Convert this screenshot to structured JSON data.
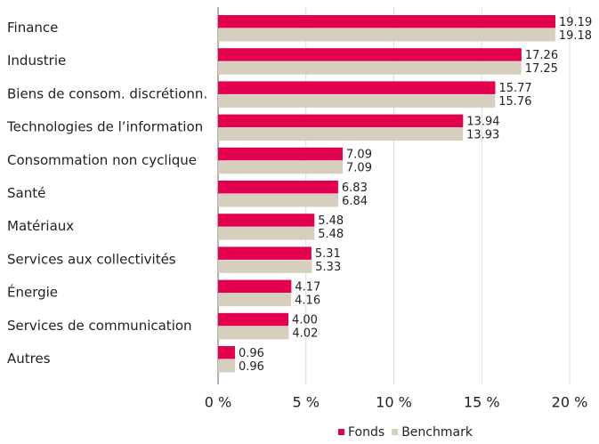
{
  "chart_data": {
    "type": "bar",
    "orientation": "horizontal",
    "categories": [
      "Finance",
      "Industrie",
      "Biens de consom. discrétionn.",
      "Technologies de l’information",
      "Consommation non cyclique",
      "Santé",
      "Matériaux",
      "Services aux collectivités",
      "Énergie",
      "Services de communication",
      "Autres"
    ],
    "series": [
      {
        "name": "Fonds",
        "color": "#e2004f",
        "values": [
          19.19,
          17.26,
          15.77,
          13.94,
          7.09,
          6.83,
          5.48,
          5.31,
          4.17,
          4.0,
          0.96
        ],
        "value_labels": [
          "19.19",
          "17.26",
          "15.77",
          "13.94",
          "7.09",
          "6.83",
          "5.48",
          "5.31",
          "4.17",
          "4.00",
          "0.96"
        ]
      },
      {
        "name": "Benchmark",
        "color": "#d6cfbd",
        "values": [
          19.18,
          17.25,
          15.76,
          13.93,
          7.09,
          6.84,
          5.48,
          5.33,
          4.16,
          4.02,
          0.96
        ],
        "value_labels": [
          "19.18",
          "17.25",
          "15.76",
          "13.93",
          "7.09",
          "6.84",
          "5.48",
          "5.33",
          "4.16",
          "4.02",
          "0.96"
        ]
      }
    ],
    "xlim": [
      0,
      20
    ],
    "xticks": [
      {
        "value": 0,
        "label": "0 %"
      },
      {
        "value": 5,
        "label": "5 %"
      },
      {
        "value": 10,
        "label": "10 %"
      },
      {
        "value": 15,
        "label": "15 %"
      },
      {
        "value": 20,
        "label": "20 %"
      }
    ],
    "grid": true,
    "legend": "bottom"
  }
}
